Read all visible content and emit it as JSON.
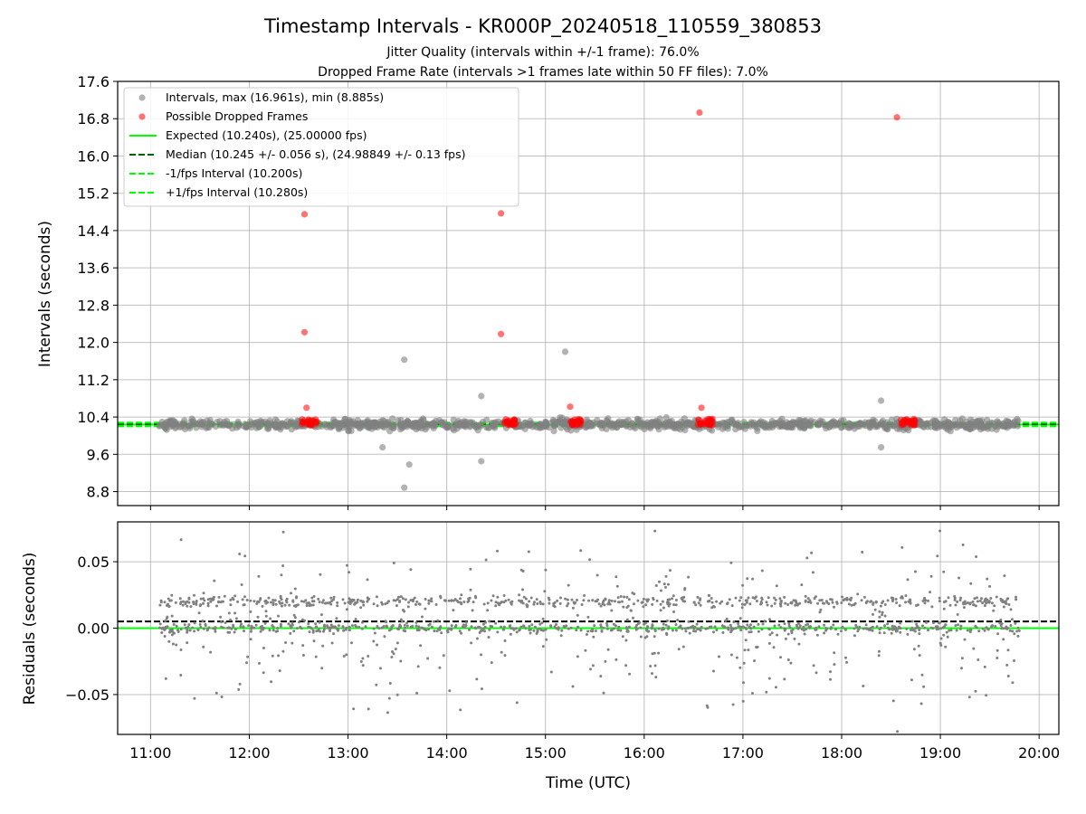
{
  "figure": {
    "title": "Timestamp Intervals - KR000P_20240518_110559_380853",
    "subtitle1": "Jitter Quality (intervals within +/-1 frame): 76.0%",
    "subtitle2": "Dropped Frame Rate (intervals >1 frames late within 50 FF files): 7.0%"
  },
  "colors": {
    "intervals": "#808080",
    "dropped": "#ff0000",
    "expected": "#00ff00",
    "median": "#006400",
    "fps_band": "#00ff00",
    "residuals": "#808080",
    "grid": "#b0b0b0"
  },
  "chart_data": [
    {
      "type": "scatter",
      "ylabel": "Intervals (seconds)",
      "xlim": [
        "10:40",
        "20:12"
      ],
      "ylim": [
        8.5,
        17.6
      ],
      "yticks": [
        "8.8",
        "9.6",
        "10.4",
        "11.2",
        "12.0",
        "12.8",
        "13.6",
        "14.4",
        "15.2",
        "16.0",
        "16.8",
        "17.6"
      ],
      "grid": true,
      "legend_position": "upper-left",
      "legend": [
        "Intervals, max (16.961s), min (8.885s)",
        "Possible Dropped Frames",
        "Expected (10.240s), (25.00000 fps)",
        "Median (10.245 +/- 0.056 s), (24.98849 +/- 0.13 fps)",
        "-1/fps Interval (10.200s)",
        "+1/fps Interval (10.280s)"
      ],
      "series": [
        {
          "name": "Intervals, max (16.961s), min (8.885s)",
          "time_range": [
            "11:05",
            "19:48"
          ],
          "center": 10.24,
          "typical_spread": 0.1,
          "outliers": [
            [
              13.57,
              8.885
            ],
            [
              13.62,
              9.38
            ],
            [
              14.35,
              9.45
            ],
            [
              13.57,
              11.63
            ],
            [
              15.2,
              11.8
            ],
            [
              13.35,
              9.75
            ],
            [
              18.4,
              9.75
            ],
            [
              18.4,
              10.75
            ],
            [
              14.35,
              10.85
            ]
          ]
        },
        {
          "name": "Possible Dropped Frames",
          "clusters": [
            "12:32-12:42",
            "14:35-14:42",
            "15:15-15:22",
            "16:32-16:42",
            "18:35-18:45"
          ],
          "points": [
            [
              12.56,
              14.75
            ],
            [
              12.56,
              12.22
            ],
            [
              14.55,
              14.77
            ],
            [
              14.55,
              12.18
            ],
            [
              16.56,
              16.93
            ],
            [
              18.56,
              16.83
            ],
            [
              12.58,
              10.6
            ],
            [
              15.25,
              10.62
            ],
            [
              16.58,
              10.6
            ]
          ]
        }
      ],
      "expected": 10.24,
      "median": 10.245,
      "minus_one_frame": 10.2,
      "plus_one_frame": 10.28
    },
    {
      "type": "scatter",
      "xlabel": "Time (UTC)",
      "ylabel": "Residuals (seconds)",
      "xlim": [
        "10:40",
        "20:12"
      ],
      "xticks": [
        "11:00",
        "12:00",
        "13:00",
        "14:00",
        "15:00",
        "16:00",
        "17:00",
        "18:00",
        "19:00",
        "20:00"
      ],
      "ylim": [
        -0.08,
        0.08
      ],
      "yticks": [
        "−0.05",
        "0.00",
        "0.05"
      ],
      "grid": true,
      "series": [
        {
          "name": "Residuals",
          "time_range": [
            "11:05",
            "19:48"
          ],
          "bands": [
            0.0,
            0.02
          ],
          "spread": 0.08
        }
      ],
      "zero_line": 0.0,
      "median_offset": 0.005
    }
  ]
}
